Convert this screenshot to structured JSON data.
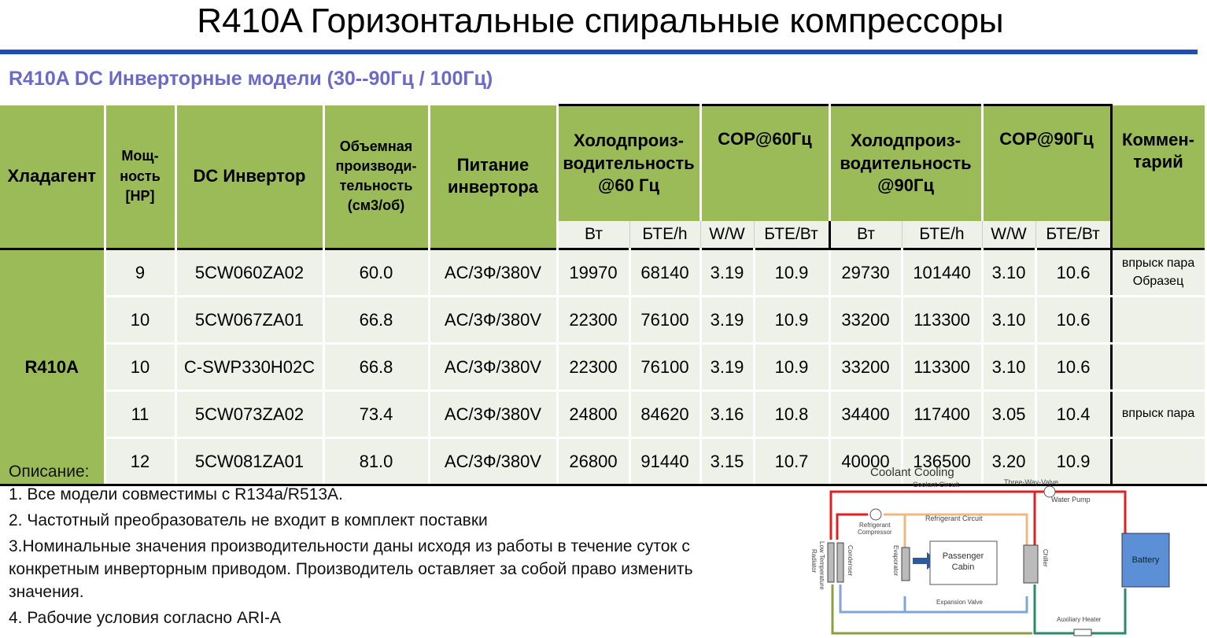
{
  "title": "R410A Горизонтальные спиральные компрессоры",
  "subtitle": "R410A DC Инверторные модели (30--90Гц / 100Гц)",
  "table": {
    "headers": {
      "refrigerant": "Хладагент",
      "power": "Мощ-\nность\n[HP]",
      "inverter": "DC Инвертор",
      "displacement": "Объемная\nпроизводи-\nтельность\n(см3/об)",
      "supply": "Питание\nинвертора",
      "cap60": "Холодпроиз-\nводительность\n@60 Гц",
      "cop60": "COP@60Гц",
      "cap90": "Холодпроиз-\nводительность\n@90Гц",
      "cop90": "COP@90Гц",
      "comment": "Коммен-\nтарий"
    },
    "units": [
      "Вт",
      "БТЕ/h",
      "W/W",
      "БТЕ/Вт",
      "Вт",
      "БТЕ/h",
      "W/W",
      "БТЕ/Вт"
    ],
    "refrigerant": "R410A",
    "rows": [
      [
        "9",
        "5CW060ZA02",
        "60.0",
        "AC/3Ф/380V",
        "19970",
        "68140",
        "3.19",
        "10.9",
        "29730",
        "101440",
        "3.10",
        "10.6",
        "впрыск пара\nОбразец"
      ],
      [
        "10",
        "5CW067ZA01",
        "66.8",
        "AC/3Ф/380V",
        "22300",
        "76100",
        "3.19",
        "10.9",
        "33200",
        "113300",
        "3.10",
        "10.6",
        ""
      ],
      [
        "10",
        "C-SWP330H02C",
        "66.8",
        "AC/3Ф/380V",
        "22300",
        "76100",
        "3.19",
        "10.9",
        "33200",
        "113300",
        "3.10",
        "10.6",
        ""
      ],
      [
        "11",
        "5CW073ZA02",
        "73.4",
        "AC/3Ф/380V",
        "24800",
        "84620",
        "3.16",
        "10.8",
        "34400",
        "117400",
        "3.05",
        "10.4",
        "впрыск пара"
      ],
      [
        "12",
        "5CW081ZA01",
        "81.0",
        "AC/3Ф/380V",
        "26800",
        "91440",
        "3.15",
        "10.7",
        "40000",
        "136500",
        "3.20",
        "10.9",
        ""
      ]
    ]
  },
  "notes": {
    "heading": "Описание:",
    "items": [
      "1. Все модели совместимы с R134a/R513A.",
      "2. Частотный преобразователь не входит в комплект поставки",
      "3.Номинальные значения производительности даны исходя из работы в течение суток с конкретным инверторным приводом. Производитель оставляет за собой право изменить значения.",
      "4. Рабочие условия согласно ARI-A"
    ]
  },
  "diagram": {
    "title": "Coolant Cooling",
    "coolant_circuit": "Coolant Circuit",
    "three_way_valve": "Three-Way-Valve",
    "water_pump": "Water Pump",
    "refrigerant_compressor_1": "Refrigerant",
    "refrigerant_compressor_2": "Compressor",
    "refrigerant_circuit": "Refrigerant Circuit",
    "radiator_1": "Low Temperature",
    "radiator_2": "Radiator",
    "condenser": "Condenser",
    "evaporator": "Evaporator",
    "cabin_1": "Passenger",
    "cabin_2": "Cabin",
    "chiller": "Chiller",
    "battery": "Battery",
    "expansion_valve": "Expansion Valve",
    "auxiliary_heater": "Auxiliary Heater"
  },
  "colors": {
    "header_green": "#9bbb59",
    "cell_bg": "#eef1e7",
    "accent_blue": "#1f4fb4",
    "subtitle": "#6a6ac8"
  }
}
